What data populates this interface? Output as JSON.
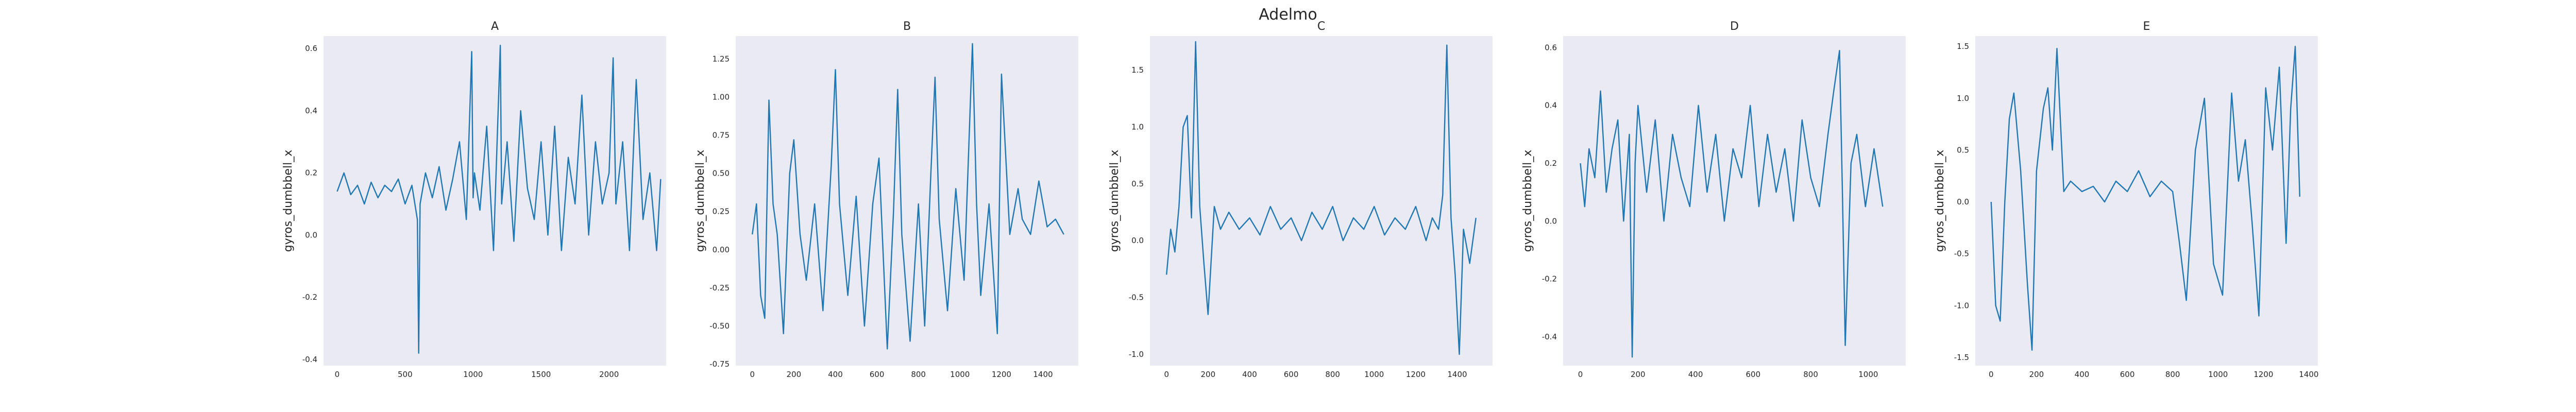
{
  "figure": {
    "suptitle": "Adelmo",
    "background": "#ffffff",
    "plot_background": "#eaeaf2",
    "line_color": "#1f77b4"
  },
  "chart_data": [
    {
      "type": "line",
      "title": "A",
      "xlabel": "",
      "ylabel": "gyros_dumbbell_x",
      "xlim": [
        -100,
        2420
      ],
      "ylim": [
        -0.42,
        0.64
      ],
      "xticks": [
        0,
        500,
        1000,
        1500,
        2000
      ],
      "yticks": [
        -0.4,
        -0.2,
        0.0,
        0.2,
        0.4,
        0.6
      ],
      "ytick_labels": [
        "-0.4",
        "-0.2",
        "0.0",
        "0.2",
        "0.4",
        "0.6"
      ],
      "grid": false,
      "legend": "none",
      "series": [
        {
          "x": [
            0,
            50,
            100,
            150,
            200,
            250,
            300,
            350,
            400,
            450,
            500,
            550,
            590,
            600,
            610,
            650,
            700,
            750,
            800,
            850,
            900,
            950,
            990,
            1000,
            1010,
            1050,
            1100,
            1150,
            1200,
            1210,
            1250,
            1300,
            1350,
            1400,
            1450,
            1500,
            1550,
            1600,
            1650,
            1700,
            1750,
            1800,
            1850,
            1900,
            1950,
            2000,
            2030,
            2050,
            2100,
            2150,
            2200,
            2250,
            2300,
            2350,
            2380
          ],
          "values": [
            0.14,
            0.2,
            0.13,
            0.16,
            0.1,
            0.17,
            0.12,
            0.16,
            0.14,
            0.18,
            0.1,
            0.16,
            0.05,
            -0.38,
            0.1,
            0.2,
            0.12,
            0.22,
            0.08,
            0.18,
            0.3,
            0.05,
            0.59,
            0.12,
            0.2,
            0.08,
            0.35,
            -0.05,
            0.61,
            0.1,
            0.3,
            -0.02,
            0.4,
            0.15,
            0.05,
            0.3,
            0.0,
            0.35,
            -0.05,
            0.25,
            0.1,
            0.45,
            0.0,
            0.3,
            0.1,
            0.2,
            0.57,
            0.1,
            0.3,
            -0.05,
            0.5,
            0.05,
            0.2,
            -0.05,
            0.18
          ]
        }
      ]
    },
    {
      "type": "line",
      "title": "B",
      "xlabel": "",
      "ylabel": "gyros_dumbbell_x",
      "xlim": [
        -80,
        1570
      ],
      "ylim": [
        -0.76,
        1.4
      ],
      "xticks": [
        0,
        200,
        400,
        600,
        800,
        1000,
        1200,
        1400
      ],
      "yticks": [
        -0.75,
        -0.5,
        -0.25,
        0.0,
        0.25,
        0.5,
        0.75,
        1.0,
        1.25
      ],
      "ytick_labels": [
        "-0.75",
        "-0.50",
        "-0.25",
        "0.00",
        "0.25",
        "0.50",
        "0.75",
        "1.00",
        "1.25"
      ],
      "grid": false,
      "legend": "none",
      "series": [
        {
          "x": [
            0,
            20,
            40,
            60,
            80,
            100,
            120,
            150,
            180,
            200,
            230,
            260,
            300,
            340,
            380,
            400,
            420,
            460,
            500,
            540,
            580,
            610,
            650,
            680,
            700,
            720,
            760,
            800,
            830,
            860,
            880,
            900,
            940,
            980,
            1020,
            1060,
            1080,
            1100,
            1140,
            1180,
            1200,
            1240,
            1280,
            1300,
            1340,
            1380,
            1420,
            1460,
            1500
          ],
          "values": [
            0.1,
            0.3,
            -0.3,
            -0.45,
            0.98,
            0.3,
            0.1,
            -0.55,
            0.5,
            0.72,
            0.1,
            -0.2,
            0.3,
            -0.4,
            0.55,
            1.18,
            0.3,
            -0.3,
            0.35,
            -0.5,
            0.3,
            0.6,
            -0.65,
            0.25,
            1.05,
            0.1,
            -0.6,
            0.3,
            -0.5,
            0.5,
            1.13,
            0.2,
            -0.4,
            0.4,
            -0.2,
            1.35,
            0.3,
            -0.3,
            0.3,
            -0.55,
            1.15,
            0.1,
            0.4,
            0.2,
            0.1,
            0.45,
            0.15,
            0.2,
            0.1
          ]
        }
      ]
    },
    {
      "type": "line",
      "title": "C",
      "xlabel": "",
      "ylabel": "gyros_dumbbell_x",
      "xlim": [
        -80,
        1570
      ],
      "ylim": [
        -1.1,
        1.8
      ],
      "xticks": [
        0,
        200,
        400,
        600,
        800,
        1000,
        1200,
        1400
      ],
      "yticks": [
        -1.0,
        -0.5,
        0.0,
        0.5,
        1.0,
        1.5
      ],
      "ytick_labels": [
        "-1.0",
        "-0.5",
        "0.0",
        "0.5",
        "1.0",
        "1.5"
      ],
      "grid": false,
      "legend": "none",
      "series": [
        {
          "x": [
            0,
            20,
            40,
            60,
            80,
            100,
            120,
            140,
            160,
            180,
            200,
            230,
            260,
            300,
            350,
            400,
            450,
            500,
            550,
            600,
            650,
            700,
            750,
            800,
            850,
            900,
            950,
            1000,
            1050,
            1100,
            1150,
            1200,
            1250,
            1280,
            1310,
            1330,
            1350,
            1370,
            1390,
            1410,
            1430,
            1460,
            1490
          ],
          "values": [
            -0.3,
            0.1,
            -0.1,
            0.3,
            1.0,
            1.1,
            0.2,
            1.75,
            0.3,
            -0.2,
            -0.65,
            0.3,
            0.1,
            0.25,
            0.1,
            0.2,
            0.05,
            0.3,
            0.1,
            0.2,
            0.0,
            0.25,
            0.1,
            0.3,
            0.0,
            0.2,
            0.1,
            0.3,
            0.05,
            0.2,
            0.1,
            0.3,
            0.0,
            0.2,
            0.1,
            0.4,
            1.72,
            0.2,
            -0.3,
            -1.0,
            0.1,
            -0.2,
            0.2
          ]
        }
      ]
    },
    {
      "type": "line",
      "title": "D",
      "xlabel": "",
      "ylabel": "gyros_dumbbell_x",
      "xlim": [
        -60,
        1130
      ],
      "ylim": [
        -0.5,
        0.64
      ],
      "xticks": [
        0,
        200,
        400,
        600,
        800,
        1000
      ],
      "yticks": [
        -0.4,
        -0.2,
        0.0,
        0.2,
        0.4,
        0.6
      ],
      "ytick_labels": [
        "-0.4",
        "-0.2",
        "0.0",
        "0.2",
        "0.4",
        "0.6"
      ],
      "grid": false,
      "legend": "none",
      "series": [
        {
          "x": [
            0,
            15,
            30,
            50,
            70,
            90,
            110,
            130,
            150,
            170,
            180,
            190,
            200,
            230,
            260,
            290,
            320,
            350,
            380,
            410,
            440,
            470,
            500,
            530,
            560,
            590,
            620,
            650,
            680,
            710,
            740,
            770,
            800,
            830,
            860,
            880,
            900,
            910,
            920,
            940,
            960,
            990,
            1020,
            1050
          ],
          "values": [
            0.2,
            0.05,
            0.25,
            0.15,
            0.45,
            0.1,
            0.25,
            0.35,
            0.0,
            0.3,
            -0.47,
            0.2,
            0.4,
            0.1,
            0.35,
            0.0,
            0.3,
            0.15,
            0.05,
            0.4,
            0.1,
            0.3,
            0.0,
            0.25,
            0.15,
            0.4,
            0.05,
            0.3,
            0.1,
            0.25,
            0.0,
            0.35,
            0.15,
            0.05,
            0.3,
            0.45,
            0.59,
            0.1,
            -0.43,
            0.2,
            0.3,
            0.05,
            0.25,
            0.05
          ]
        }
      ]
    },
    {
      "type": "line",
      "title": "E",
      "xlabel": "",
      "ylabel": "gyros_dumbbell_x",
      "xlim": [
        -70,
        1440
      ],
      "ylim": [
        -1.58,
        1.6
      ],
      "xticks": [
        0,
        200,
        400,
        600,
        800,
        1000,
        1200,
        1400
      ],
      "yticks": [
        -1.5,
        -1.0,
        -0.5,
        0.0,
        0.5,
        1.0,
        1.5
      ],
      "ytick_labels": [
        "-1.5",
        "-1.0",
        "-0.5",
        "0.0",
        "0.5",
        "1.0",
        "1.5"
      ],
      "grid": false,
      "legend": "none",
      "series": [
        {
          "x": [
            0,
            20,
            40,
            60,
            80,
            100,
            130,
            160,
            180,
            200,
            230,
            250,
            270,
            290,
            320,
            350,
            400,
            450,
            500,
            550,
            600,
            650,
            700,
            750,
            800,
            830,
            860,
            900,
            940,
            980,
            1020,
            1060,
            1090,
            1120,
            1150,
            1180,
            1210,
            1240,
            1270,
            1300,
            1320,
            1340,
            1360
          ],
          "values": [
            0.0,
            -1.0,
            -1.15,
            0.0,
            0.8,
            1.05,
            0.3,
            -0.8,
            -1.43,
            0.3,
            0.9,
            1.1,
            0.5,
            1.48,
            0.1,
            0.2,
            0.1,
            0.15,
            0.0,
            0.2,
            0.1,
            0.3,
            0.05,
            0.2,
            0.1,
            -0.4,
            -0.95,
            0.5,
            1.0,
            -0.6,
            -0.9,
            1.05,
            0.2,
            0.6,
            -0.2,
            -1.1,
            1.1,
            0.5,
            1.3,
            -0.4,
            0.9,
            1.5,
            0.05
          ]
        }
      ]
    }
  ]
}
